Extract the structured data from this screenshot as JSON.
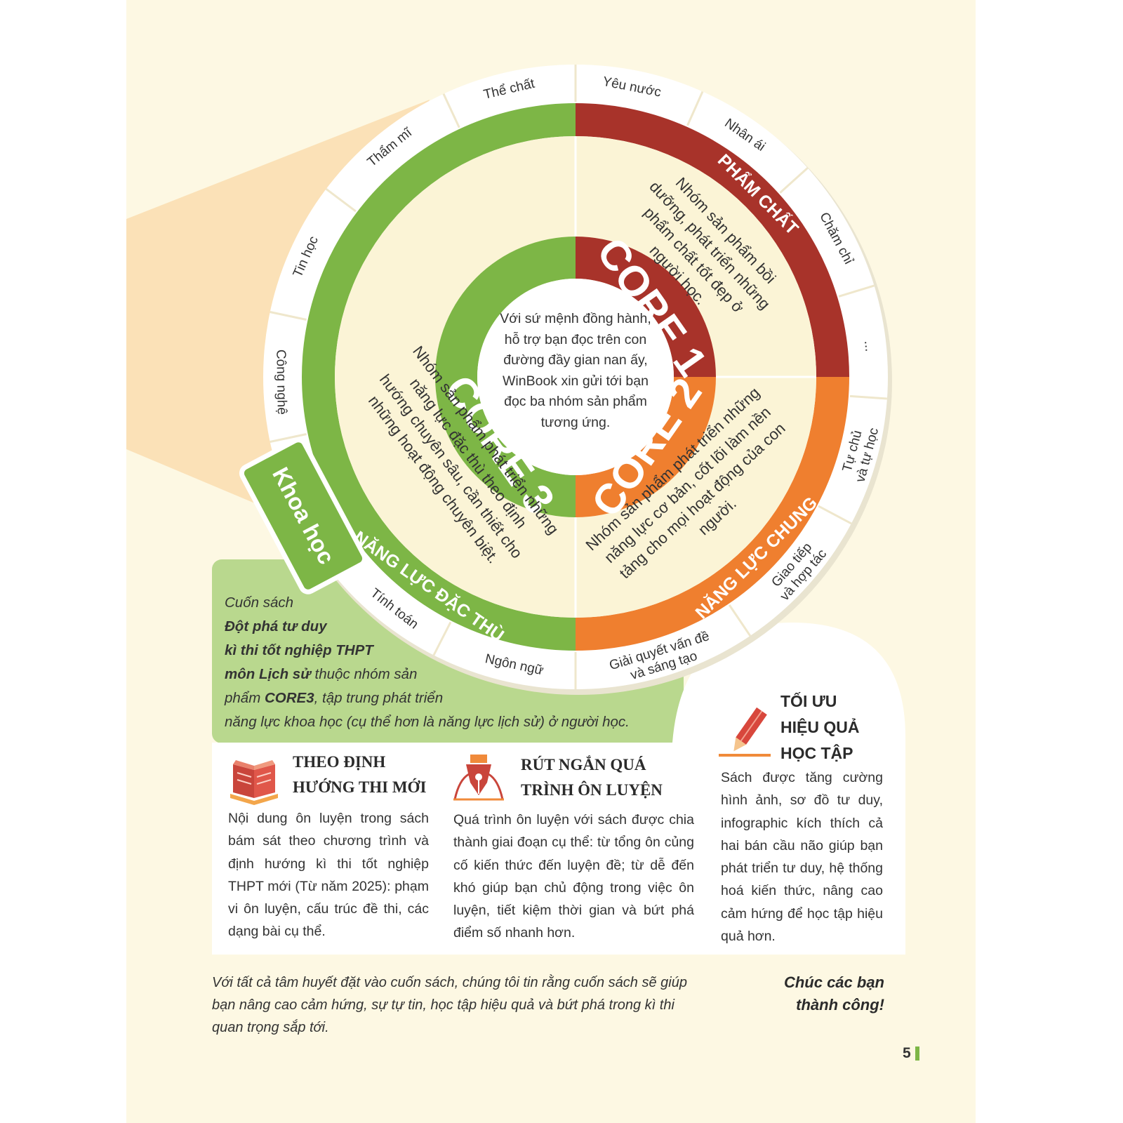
{
  "wheel": {
    "center_text": "Với sứ mệnh đồng hành, hỗ trợ bạn đọc trên con đường đầy gian nan ấy, WinBook xin gửi tới bạn đọc ba nhóm sản phẩm tương ứng.",
    "cores": [
      {
        "label": "CORE 1",
        "band_label": "PHẨM CHẤT",
        "description": "Nhóm sản phẩm bồi dưỡng, phát triển những phẩm chất tốt đẹp ở người học.",
        "color": "#a8332a"
      },
      {
        "label": "CORE 2",
        "band_label": "NĂNG LỰC CHUNG",
        "description": "Nhóm sản phẩm phát triển những năng lực cơ bản, cốt lõi làm nền tảng cho mọi hoạt động của con người.",
        "color": "#ef7f2f"
      },
      {
        "label": "CORE 3",
        "band_label": "NĂNG LỰC ĐẶC THÙ",
        "description": "Nhóm sản phẩm phát triển những năng lực đặc thù theo định hướng chuyên sâu, cần thiết cho những hoạt động chuyên biệt.",
        "color": "#7db646"
      }
    ],
    "outer_labels": [
      [
        "Thể chất"
      ],
      [
        "Yêu nước"
      ],
      [
        "Nhân ái"
      ],
      [
        "Chăm chỉ"
      ],
      [
        "..."
      ],
      [
        "Tự chủ",
        "và tự học"
      ],
      [
        "Giao tiếp",
        "và hợp tác"
      ],
      [
        "Giải quyết vấn đề",
        "và sáng tạo"
      ],
      [
        "Ngôn ngữ"
      ],
      [
        "Tính toán"
      ],
      [
        "Công nghệ"
      ],
      [
        "Tin học"
      ],
      [
        "Thẩm mĩ"
      ]
    ],
    "tab_label": "Khoa học"
  },
  "book_note": {
    "lines": [
      [
        {
          "text": "Cuốn sách"
        }
      ],
      [
        {
          "text": "Đột phá tư duy",
          "bold": true
        }
      ],
      [
        {
          "text": "kì thi tốt nghiệp THPT",
          "bold": true
        }
      ],
      [
        {
          "text": "môn Lịch sử",
          "bold": true
        },
        {
          "text": " thuộc nhóm sản"
        }
      ],
      [
        {
          "text": "phẩm "
        },
        {
          "text": "CORE3",
          "bold": true
        },
        {
          "text": ", tập trung phát triển"
        }
      ],
      [
        {
          "text": "năng lực khoa học (cụ thể hơn là năng lực lịch sử) ở người học."
        }
      ]
    ]
  },
  "features": [
    {
      "title": [
        "THEO ĐỊNH",
        "HƯỚNG THI MỚI"
      ],
      "body": "Nội dung ôn luyện trong sách bám sát theo chương trình và định hướng kì thi tốt nghiệp THPT mới (Từ năm 2025): phạm vi ôn luyện, cấu trúc đề thi, các dạng bài cụ thể."
    },
    {
      "title": [
        "RÚT NGẮN QUÁ",
        "TRÌNH ÔN LUYỆN"
      ],
      "body": "Quá trình ôn luyện với sách được chia thành giai đoạn cụ thể: từ tổng ôn củng cố kiến thức đến luyện đề; từ dễ đến khó giúp bạn chủ động trong việc ôn luyện, tiết kiệm thời gian và bứt phá điểm số nhanh hơn."
    },
    {
      "title": [
        "TỐI ƯU",
        "HIỆU QUẢ",
        "HỌC TẬP"
      ],
      "body": "Sách được tăng cường hình ảnh, sơ đồ tư duy, infographic kích thích cả hai bán cầu não giúp bạn phát triển tư duy, hệ thống hoá kiến thức, nâng cao cảm hứng để học tập hiệu quả hơn."
    }
  ],
  "footer": {
    "text": "Với tất cả tâm huyết đặt vào cuốn sách, chúng tôi tin rằng cuốn sách sẽ giúp bạn nâng cao cảm hứng, sự tự tin, học tập hiệu quả và bứt phá trong kì thi quan trọng sắp tới.",
    "closing": "Chúc các bạn thành công!",
    "page_number": "5"
  }
}
